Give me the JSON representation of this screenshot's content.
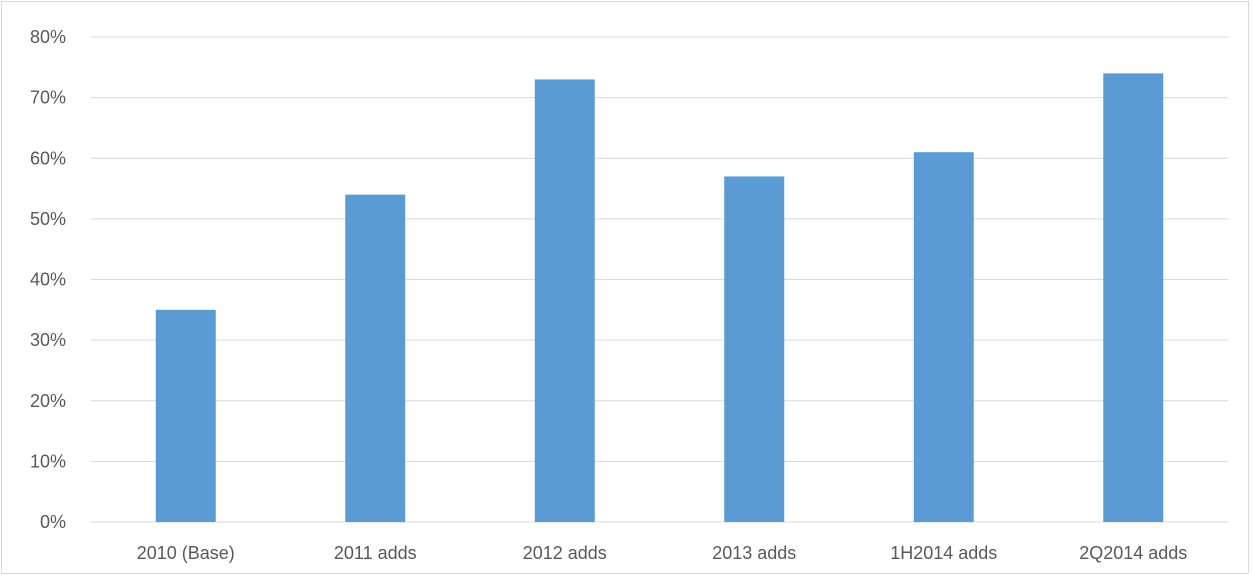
{
  "chart_data": {
    "type": "bar",
    "title": "",
    "xlabel": "",
    "ylabel": "",
    "categories": [
      "2010 (Base)",
      "2011 adds",
      "2012 adds",
      "2013 adds",
      "1H2014 adds",
      "2Q2014 adds"
    ],
    "values": [
      35,
      54,
      73,
      57,
      61,
      74
    ],
    "value_unit": "%",
    "ylim": [
      0,
      80
    ],
    "yticks": [
      "0%",
      "10%",
      "20%",
      "30%",
      "40%",
      "50%",
      "60%",
      "70%",
      "80%"
    ],
    "grid": true,
    "legend": "none",
    "colors": {
      "bar": "#5b9bd5",
      "grid": "#d9d9d9",
      "tick_text": "#595959",
      "border": "#d9d9d9"
    }
  }
}
